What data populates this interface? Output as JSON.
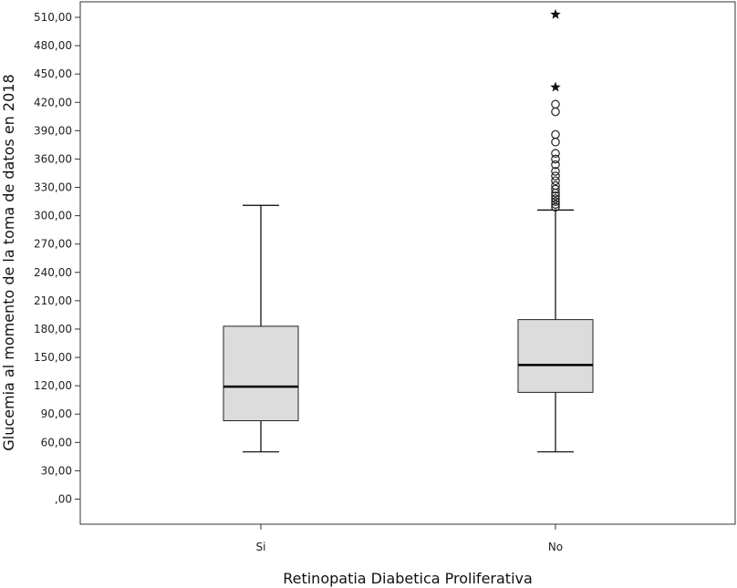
{
  "chart_data": {
    "type": "boxplot",
    "xlabel": "Retinopatia Diabetica Proliferativa",
    "ylabel": "Glucemia al momento de la toma de datos en 2018",
    "ylim": [
      0,
      528
    ],
    "yticks": [
      0,
      30,
      60,
      90,
      120,
      150,
      180,
      210,
      240,
      270,
      300,
      330,
      360,
      390,
      420,
      450,
      480,
      510
    ],
    "ytick_labels": [
      ",00",
      "30,00",
      "60,00",
      "90,00",
      "120,00",
      "150,00",
      "180,00",
      "210,00",
      "240,00",
      "270,00",
      "300,00",
      "330,00",
      "360,00",
      "390,00",
      "420,00",
      "450,00",
      "480,00",
      "510,00"
    ],
    "categories": [
      "Si",
      "No"
    ],
    "boxes": [
      {
        "category": "Si",
        "whisker_low": 50,
        "q1": 83,
        "median": 119,
        "q3": 183,
        "whisker_high": 311,
        "outliers": [],
        "extremes": []
      },
      {
        "category": "No",
        "whisker_low": 50,
        "q1": 113,
        "median": 142,
        "q3": 190,
        "whisker_high": 306,
        "outliers": [
          309,
          312,
          315,
          318,
          321,
          324,
          328,
          332,
          337,
          342,
          347,
          354,
          360,
          366,
          378,
          386,
          410,
          418
        ],
        "extremes": [
          436,
          513
        ]
      }
    ],
    "box_fill": "#dcdcdc",
    "grid": false
  }
}
